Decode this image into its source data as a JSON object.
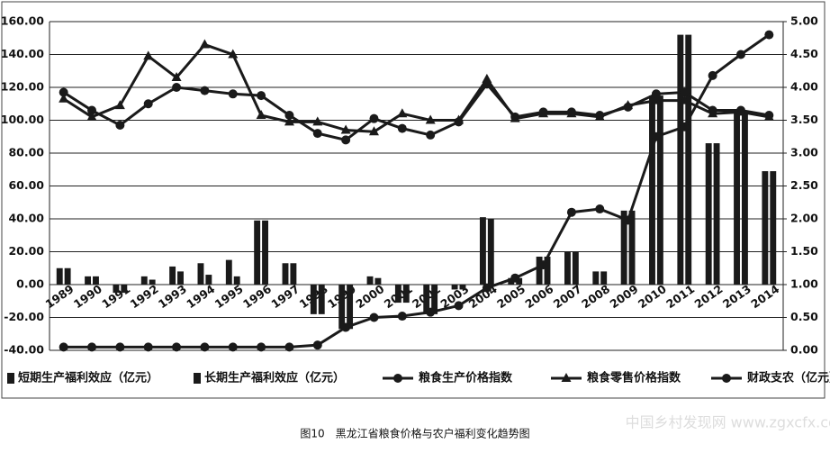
{
  "chart_data": {
    "type": "combo",
    "caption": "图10　黑龙江省粮食价格与农户福利变化趋势图",
    "watermark": "中国乡村发现网 www.zgxcfx.com",
    "categories": [
      "1989",
      "1990",
      "1991",
      "1992",
      "1993",
      "1994",
      "1995",
      "1996",
      "1997",
      "1998",
      "1999",
      "2000",
      "2001",
      "2002",
      "2003",
      "2004",
      "2005",
      "2006",
      "2007",
      "2008",
      "2009",
      "2010",
      "2011",
      "2012",
      "2013",
      "2014"
    ],
    "ylim": [
      -40,
      160
    ],
    "yticks": [
      {
        "value": -40,
        "label": "-40.00"
      },
      {
        "value": -20,
        "label": "-20.00"
      },
      {
        "value": 0,
        "label": "0.00"
      },
      {
        "value": 20,
        "label": "20.00"
      },
      {
        "value": 40,
        "label": "40.00"
      },
      {
        "value": 60,
        "label": "60.00"
      },
      {
        "value": 80,
        "label": "80.00"
      },
      {
        "value": 100,
        "label": "100.00"
      },
      {
        "value": 120,
        "label": "120.00"
      },
      {
        "value": 140,
        "label": "140.00"
      },
      {
        "value": 160,
        "label": "160.00"
      }
    ],
    "y2lim": [
      0,
      5
    ],
    "y2ticks": [
      {
        "value": 0,
        "label": "0.00"
      },
      {
        "value": 0.5,
        "label": "0.50"
      },
      {
        "value": 1,
        "label": "1.00"
      },
      {
        "value": 1.5,
        "label": "1.50"
      },
      {
        "value": 2,
        "label": "2.00"
      },
      {
        "value": 2.5,
        "label": "2.50"
      },
      {
        "value": 3,
        "label": "3.00"
      },
      {
        "value": 3.5,
        "label": "3.50"
      },
      {
        "value": 4,
        "label": "4.00"
      },
      {
        "value": 4.5,
        "label": "4.50"
      },
      {
        "value": 5,
        "label": "5.00"
      }
    ],
    "grid": true,
    "series": [
      {
        "name": "短期生产福利效应（亿元）",
        "type": "bar",
        "color": "#1a1a1a",
        "values": [
          10,
          5,
          -5,
          5,
          11,
          13,
          15,
          39,
          13,
          -18,
          -27,
          5,
          -11,
          -18,
          -3,
          41,
          4,
          17,
          20,
          8,
          45,
          115,
          152,
          86,
          105,
          69
        ]
      },
      {
        "name": "长期生产福利效应（亿元）",
        "type": "bar",
        "color": "#1a1a1a",
        "values": [
          10,
          5,
          -5,
          3,
          8,
          6,
          5,
          39,
          13,
          -18,
          -27,
          4,
          -11,
          -18,
          -3,
          40,
          4,
          17,
          20,
          8,
          45,
          115,
          152,
          86,
          105,
          69
        ]
      },
      {
        "name": "粮食生产价格指数",
        "type": "line",
        "marker": "circle",
        "color": "#1a1a1a",
        "values": [
          117,
          106,
          97,
          110,
          120,
          118,
          116,
          115,
          103,
          92,
          88,
          101,
          95,
          91,
          99,
          122,
          102,
          105,
          105,
          103,
          108,
          116,
          117,
          106,
          106,
          103
        ]
      },
      {
        "name": "粮食零售价格指数",
        "type": "line",
        "marker": "triangle",
        "color": "#1a1a1a",
        "values": [
          113,
          102,
          109,
          139,
          126,
          146,
          140,
          103,
          99,
          99,
          94,
          93,
          104,
          100,
          100,
          125,
          101,
          104,
          104,
          102,
          109,
          112,
          112,
          104,
          105,
          102
        ]
      },
      {
        "name": "财政支农（亿元）",
        "type": "line",
        "marker": "circle",
        "axis": "y2",
        "color": "#1a1a1a",
        "values": [
          0.05,
          0.05,
          0.05,
          0.05,
          0.05,
          0.05,
          0.05,
          0.05,
          0.05,
          0.08,
          0.35,
          0.5,
          0.52,
          0.58,
          0.68,
          0.95,
          1.1,
          1.3,
          2.1,
          2.15,
          1.98,
          3.25,
          3.4,
          4.18,
          4.5,
          4.8
        ]
      }
    ]
  }
}
